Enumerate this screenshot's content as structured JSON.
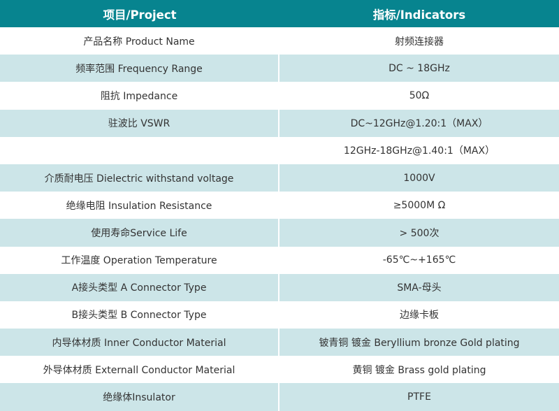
{
  "header": {
    "project": "项目/Project",
    "indicators": "指标/Indicators"
  },
  "colors": {
    "header": "#07848f",
    "alt_row": "#cce5e8"
  },
  "rows": [
    {
      "project": "产品名称 Product Name",
      "indicator": "射频连接器"
    },
    {
      "project": "频率范围 Frequency Range",
      "indicator": "DC ~ 18GHz"
    },
    {
      "project": "阻抗 Impedance",
      "indicator": "50Ω"
    },
    {
      "project": "驻波比 VSWR",
      "indicator": "DC~12GHz@1.20:1（MAX）"
    },
    {
      "project": "",
      "indicator": "12GHz-18GHz@1.40:1（MAX）"
    },
    {
      "project": "介质耐电压 Dielectric withstand voltage",
      "indicator": "1000V"
    },
    {
      "project": "绝缘电阻 Insulation Resistance",
      "indicator": "≥5000M Ω"
    },
    {
      "project": "使用寿命Service Life",
      "indicator": "> 500次"
    },
    {
      "project": "工作温度 Operation Temperature",
      "indicator": "-65℃~+165℃"
    },
    {
      "project": "A接头类型 A Connector Type",
      "indicator": "SMA-母头"
    },
    {
      "project": "B接头类型 B Connector Type",
      "indicator": "边缘卡板"
    },
    {
      "project": "内导体材质 Inner Conductor Material",
      "indicator": "铍青铜 镀金 Beryllium bronze Gold plating"
    },
    {
      "project": "外导体材质 Externall Conductor Material",
      "indicator": "黄铜 镀金 Brass gold plating"
    },
    {
      "project": "绝缘体Insulator",
      "indicator": "PTFE"
    }
  ]
}
